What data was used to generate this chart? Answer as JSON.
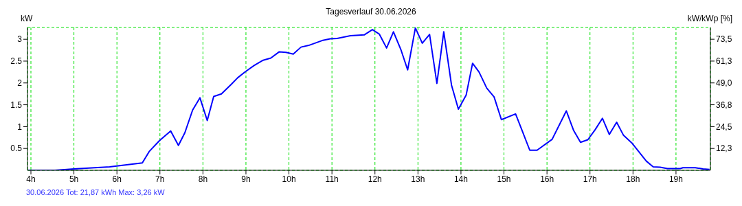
{
  "chart_data": {
    "type": "line",
    "title": "Tagesverlauf 30.06.2026",
    "ylabel": "kW",
    "y2label": "kW/kWp [%]",
    "annotations": [
      "30.06.2026 Tot: 21,87 kWh Max: 3,26 kW"
    ],
    "x": [
      3.93,
      4.56,
      5.0,
      5.83,
      6.59,
      6.75,
      6.99,
      7.25,
      7.43,
      7.58,
      7.76,
      7.93,
      8.1,
      8.25,
      8.43,
      8.66,
      8.81,
      8.99,
      9.19,
      9.4,
      9.58,
      9.77,
      9.93,
      10.1,
      10.28,
      10.46,
      10.77,
      10.96,
      11.12,
      11.43,
      11.75,
      11.94,
      12.1,
      12.27,
      12.43,
      12.6,
      12.76,
      12.94,
      13.1,
      13.27,
      13.44,
      13.6,
      13.78,
      13.94,
      14.12,
      14.27,
      14.42,
      14.6,
      14.77,
      14.94,
      15.27,
      15.6,
      15.77,
      16.12,
      16.45,
      16.62,
      16.78,
      16.95,
      17.12,
      17.29,
      17.45,
      17.62,
      17.78,
      17.97,
      18.31,
      18.47,
      18.63,
      18.8,
      19.1,
      19.16,
      19.45,
      19.63,
      19.78
    ],
    "series": [
      {
        "color": "#0000ff",
        "values": [
          0,
          0,
          0.03,
          0.08,
          0.17,
          0.43,
          0.68,
          0.9,
          0.57,
          0.86,
          1.38,
          1.66,
          1.14,
          1.69,
          1.75,
          1.97,
          2.12,
          2.26,
          2.4,
          2.52,
          2.57,
          2.71,
          2.7,
          2.66,
          2.82,
          2.86,
          2.97,
          3.01,
          3.02,
          3.08,
          3.1,
          3.22,
          3.12,
          2.8,
          3.17,
          2.77,
          2.3,
          3.26,
          2.91,
          3.11,
          1.99,
          3.17,
          1.95,
          1.4,
          1.72,
          2.45,
          2.25,
          1.88,
          1.68,
          1.16,
          1.29,
          0.46,
          0.46,
          0.71,
          1.36,
          0.91,
          0.64,
          0.7,
          0.93,
          1.19,
          0.82,
          1.1,
          0.8,
          0.63,
          0.21,
          0.08,
          0.07,
          0.04,
          0.04,
          0.06,
          0.06,
          0.03,
          0.02
        ]
      }
    ],
    "xlim": [
      3.92,
      19.8
    ],
    "xticks": [
      {
        "value": 4,
        "label": "4h"
      },
      {
        "value": 5,
        "label": "5h"
      },
      {
        "value": 6,
        "label": "6h"
      },
      {
        "value": 7,
        "label": "7h"
      },
      {
        "value": 8,
        "label": "8h"
      },
      {
        "value": 9,
        "label": "9h"
      },
      {
        "value": 10,
        "label": "10h"
      },
      {
        "value": 11,
        "label": "11h"
      },
      {
        "value": 12,
        "label": "12h"
      },
      {
        "value": 13,
        "label": "13h"
      },
      {
        "value": 14,
        "label": "14h"
      },
      {
        "value": 15,
        "label": "15h"
      },
      {
        "value": 16,
        "label": "16h"
      },
      {
        "value": 17,
        "label": "17h"
      },
      {
        "value": 18,
        "label": "18h"
      },
      {
        "value": 19,
        "label": "19h"
      }
    ],
    "ylim": [
      0,
      3.27
    ],
    "yticks": [
      0.5,
      1,
      1.5,
      2,
      2.5,
      3
    ],
    "y2lim": [
      0,
      80.1
    ],
    "y2ticks": [
      {
        "value": 12.25,
        "label": "12,3"
      },
      {
        "value": 24.5,
        "label": "24,5"
      },
      {
        "value": 36.75,
        "label": "36,8"
      },
      {
        "value": 49,
        "label": "49,0"
      },
      {
        "value": 61.25,
        "label": "61,3"
      },
      {
        "value": 73.5,
        "label": "73,5"
      }
    ],
    "grid": true,
    "legend": false,
    "marker": "none",
    "line_style": "solid"
  }
}
